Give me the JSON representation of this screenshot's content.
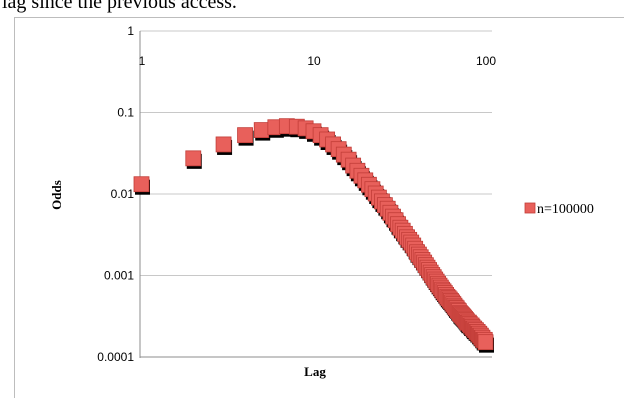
{
  "caption": "lag since the previous access.",
  "chart_data": {
    "type": "scatter",
    "title": "",
    "xlabel": "Lag",
    "ylabel": "Odds",
    "x_scale": "log",
    "y_scale": "log",
    "xlim": [
      1,
      100
    ],
    "ylim": [
      0.0001,
      1
    ],
    "x_tick_labels": [
      "1",
      "10",
      "100"
    ],
    "y_tick_labels": [
      "1",
      "0.1",
      "0.01",
      "0.001",
      "0.0001"
    ],
    "grid": "horizontal",
    "legend_position": "right",
    "series": [
      {
        "name": "n=100000",
        "color": "#e8605b",
        "x": [
          1,
          2,
          3,
          4,
          5,
          6,
          7,
          8,
          9,
          10,
          11,
          12,
          13,
          14,
          15,
          16,
          17,
          18,
          19,
          20,
          21,
          22,
          23,
          24,
          25,
          26,
          27,
          28,
          29,
          30,
          31,
          32,
          33,
          34,
          35,
          36,
          37,
          38,
          39,
          40,
          41,
          42,
          43,
          44,
          45,
          46,
          47,
          48,
          49,
          50,
          51,
          52,
          53,
          54,
          55,
          56,
          57,
          58,
          59,
          60,
          61,
          62,
          63,
          64,
          65,
          66,
          67,
          68,
          69,
          70,
          71,
          72,
          73,
          74,
          75,
          76,
          77,
          78,
          79,
          80,
          81,
          82,
          83,
          84,
          85,
          86,
          87,
          88,
          89,
          90,
          91,
          92,
          93,
          94,
          95,
          96,
          97,
          98,
          99,
          100
        ],
        "y": [
          0.013,
          0.027,
          0.04,
          0.052,
          0.06,
          0.065,
          0.067,
          0.066,
          0.063,
          0.058,
          0.052,
          0.046,
          0.04,
          0.035,
          0.03,
          0.026,
          0.022,
          0.019,
          0.0165,
          0.0145,
          0.0128,
          0.0113,
          0.01,
          0.0089,
          0.008,
          0.0072,
          0.0065,
          0.0058,
          0.0052,
          0.0047,
          0.0042,
          0.0038,
          0.0035,
          0.0032,
          0.0029,
          0.0027,
          0.0025,
          0.0023,
          0.0021,
          0.0019,
          0.00178,
          0.00165,
          0.00153,
          0.00142,
          0.00132,
          0.00123,
          0.00115,
          0.00107,
          0.001,
          0.00094,
          0.00088,
          0.00083,
          0.00078,
          0.00074,
          0.0007,
          0.00066,
          0.00063,
          0.0006,
          0.00057,
          0.00054,
          0.00052,
          0.0005,
          0.00048,
          0.00046,
          0.00044,
          0.00042,
          0.0004,
          0.00039,
          0.00037,
          0.00036,
          0.00034,
          0.00033,
          0.00032,
          0.00031,
          0.0003,
          0.00029,
          0.00028,
          0.00027,
          0.00026,
          0.00026,
          0.00025,
          0.00024,
          0.00024,
          0.00023,
          0.00022,
          0.00022,
          0.00021,
          0.00021,
          0.0002,
          0.0002,
          0.00019,
          0.00019,
          0.00018,
          0.00018,
          0.00017,
          0.00017,
          0.00016,
          0.00016,
          0.00016,
          0.00015
        ]
      }
    ]
  }
}
